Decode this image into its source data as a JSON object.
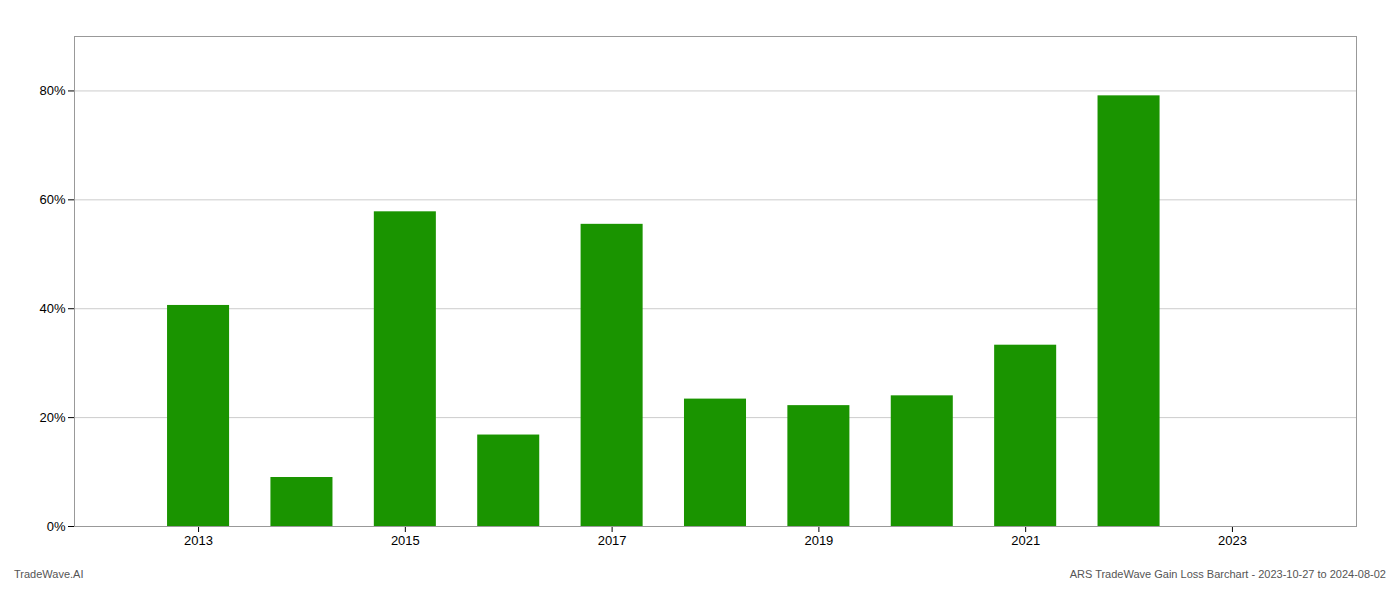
{
  "chart_data": {
    "type": "bar",
    "annotations": [
      "TradeWave.AI",
      "ARS TradeWave Gain Loss Barchart - 2023-10-27 to 2024-08-02"
    ],
    "x": [
      2013,
      2014,
      2015,
      2016,
      2017,
      2018,
      2019,
      2020,
      2021,
      2022
    ],
    "values": [
      0.406,
      0.09,
      0.578,
      0.168,
      0.555,
      0.234,
      0.222,
      0.24,
      0.333,
      0.791
    ],
    "color": "#1a9400",
    "xlim": [
      2011.8,
      2024.2
    ],
    "xticks": [
      2013,
      2015,
      2017,
      2019,
      2021,
      2023
    ],
    "ylim": [
      0,
      0.9
    ],
    "yticks": [
      {
        "value": 0.0,
        "label": "0%"
      },
      {
        "value": 0.2,
        "label": "20%"
      },
      {
        "value": 0.4,
        "label": "40%"
      },
      {
        "value": 0.6,
        "label": "60%"
      },
      {
        "value": 0.8,
        "label": "80%"
      }
    ],
    "grid": true
  }
}
